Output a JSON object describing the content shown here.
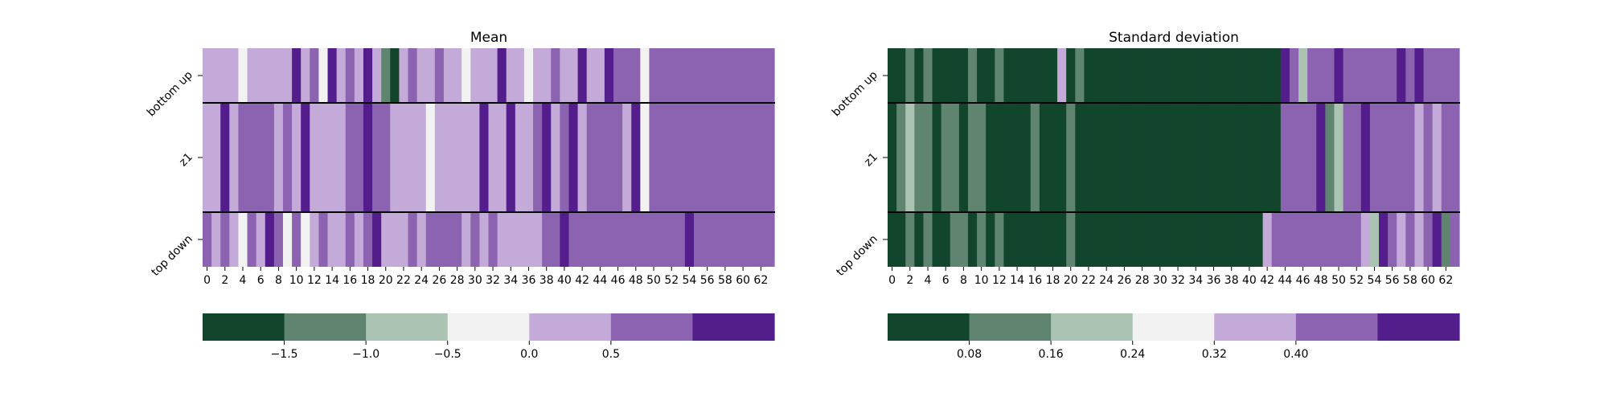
{
  "palette": [
    "#11452c",
    "#5f8570",
    "#aac3b3",
    "#f2f2f2",
    "#c4aad8",
    "#8c63b0",
    "#541d8c"
  ],
  "chart_data": [
    {
      "type": "heatmap",
      "title": "Mean",
      "row_labels": [
        "bottom up",
        "z1",
        "top down"
      ],
      "x_ticks": [
        "0",
        "2",
        "4",
        "6",
        "8",
        "10",
        "12",
        "14",
        "16",
        "18",
        "20",
        "22",
        "24",
        "26",
        "28",
        "30",
        "32",
        "34",
        "36",
        "38",
        "40",
        "42",
        "44",
        "46",
        "48",
        "50",
        "52",
        "54",
        "56",
        "58",
        "60",
        "62"
      ],
      "n_columns": 64,
      "color_bins": 7,
      "row_heights": [
        1,
        2,
        1
      ],
      "cells": [
        [
          4,
          4,
          4,
          4,
          3,
          4,
          4,
          4,
          4,
          4,
          6,
          4,
          5,
          3,
          6,
          4,
          5,
          4,
          6,
          4,
          1,
          0,
          4,
          5,
          4,
          4,
          5,
          4,
          4,
          3,
          4,
          4,
          4,
          6,
          4,
          4,
          3,
          4,
          4,
          5,
          4,
          4,
          6,
          4,
          4,
          6,
          5,
          5,
          5,
          3,
          5,
          5,
          5,
          5,
          5,
          5,
          5,
          5,
          5,
          5,
          5,
          5,
          5,
          5
        ],
        [
          4,
          4,
          6,
          4,
          5,
          5,
          5,
          5,
          4,
          5,
          4,
          6,
          4,
          4,
          4,
          4,
          5,
          5,
          6,
          5,
          5,
          4,
          4,
          4,
          4,
          3,
          4,
          4,
          4,
          4,
          4,
          6,
          4,
          4,
          6,
          4,
          4,
          5,
          6,
          4,
          5,
          6,
          4,
          5,
          5,
          5,
          5,
          4,
          6,
          3,
          5,
          5,
          5,
          5,
          5,
          5,
          5,
          5,
          5,
          5,
          5,
          5,
          5,
          5
        ],
        [
          5,
          4,
          5,
          4,
          3,
          5,
          4,
          6,
          5,
          3,
          5,
          3,
          4,
          5,
          4,
          4,
          5,
          4,
          5,
          6,
          4,
          4,
          4,
          5,
          4,
          5,
          5,
          5,
          5,
          4,
          5,
          4,
          5,
          4,
          4,
          4,
          4,
          4,
          5,
          5,
          6,
          5,
          5,
          5,
          5,
          5,
          5,
          5,
          5,
          5,
          5,
          5,
          5,
          5,
          6,
          5,
          5,
          5,
          5,
          5,
          5,
          5,
          5,
          5
        ]
      ],
      "colorbar": {
        "ticks": [
          "−1.5",
          "−1.0",
          "−0.5",
          "0.0",
          "0.5"
        ]
      }
    },
    {
      "type": "heatmap",
      "title": "Standard deviation",
      "row_labels": [
        "bottom up",
        "z1",
        "top down"
      ],
      "x_ticks": [
        "0",
        "2",
        "4",
        "6",
        "8",
        "10",
        "12",
        "14",
        "16",
        "18",
        "20",
        "22",
        "24",
        "26",
        "28",
        "30",
        "32",
        "34",
        "36",
        "38",
        "40",
        "42",
        "44",
        "46",
        "48",
        "50",
        "52",
        "54",
        "56",
        "58",
        "60",
        "62"
      ],
      "n_columns": 64,
      "color_bins": 7,
      "row_heights": [
        1,
        2,
        1
      ],
      "cells": [
        [
          0,
          0,
          1,
          0,
          1,
          0,
          0,
          0,
          0,
          1,
          0,
          0,
          1,
          0,
          0,
          0,
          0,
          0,
          0,
          4,
          0,
          1,
          0,
          0,
          0,
          0,
          0,
          0,
          0,
          0,
          0,
          0,
          0,
          0,
          0,
          0,
          0,
          0,
          0,
          0,
          0,
          0,
          0,
          0,
          6,
          5,
          2,
          5,
          5,
          5,
          6,
          5,
          5,
          5,
          5,
          5,
          5,
          6,
          5,
          6,
          5,
          5,
          5,
          5
        ],
        [
          0,
          1,
          2,
          1,
          1,
          0,
          1,
          1,
          0,
          1,
          1,
          0,
          0,
          0,
          0,
          0,
          1,
          0,
          0,
          0,
          1,
          0,
          0,
          0,
          0,
          0,
          0,
          0,
          0,
          0,
          0,
          0,
          0,
          0,
          0,
          0,
          0,
          0,
          0,
          0,
          0,
          0,
          0,
          0,
          5,
          5,
          5,
          5,
          6,
          1,
          2,
          5,
          5,
          6,
          5,
          5,
          5,
          5,
          5,
          4,
          5,
          4,
          5,
          5
        ],
        [
          0,
          0,
          1,
          0,
          1,
          0,
          0,
          1,
          1,
          0,
          1,
          0,
          1,
          0,
          0,
          0,
          0,
          0,
          0,
          0,
          1,
          0,
          0,
          0,
          0,
          0,
          0,
          0,
          0,
          0,
          0,
          0,
          0,
          0,
          0,
          0,
          0,
          0,
          0,
          0,
          0,
          0,
          4,
          5,
          5,
          5,
          5,
          5,
          5,
          5,
          5,
          5,
          5,
          4,
          2,
          6,
          5,
          4,
          5,
          4,
          5,
          6,
          1,
          5
        ]
      ],
      "colorbar": {
        "ticks": [
          "0.08",
          "0.16",
          "0.24",
          "0.32",
          "0.40"
        ]
      }
    }
  ]
}
